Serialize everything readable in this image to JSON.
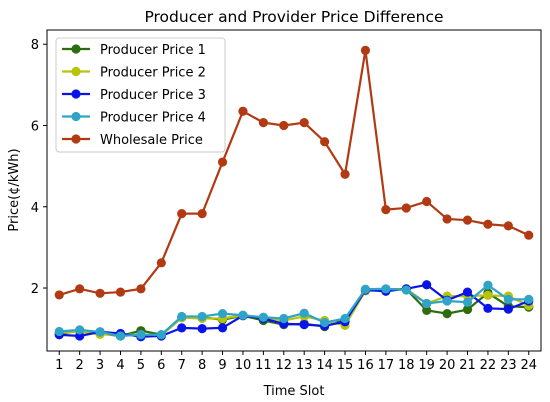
{
  "chart_data": {
    "type": "line",
    "title": "Producer and Provider Price Difference",
    "xlabel": "Time Slot",
    "ylabel": "Price(¢/kWh)",
    "x": [
      1,
      2,
      3,
      4,
      5,
      6,
      7,
      8,
      9,
      10,
      11,
      12,
      13,
      14,
      15,
      16,
      17,
      18,
      19,
      20,
      21,
      22,
      23,
      24
    ],
    "x_ticks": [
      "1",
      "2",
      "3",
      "4",
      "5",
      "6",
      "7",
      "8",
      "9",
      "10",
      "11",
      "12",
      "13",
      "14",
      "15",
      "16",
      "17",
      "18",
      "19",
      "20",
      "21",
      "22",
      "23",
      "24"
    ],
    "y_ticks": [
      "2",
      "4",
      "6",
      "8"
    ],
    "ylim": [
      0.45,
      8.35
    ],
    "xlim": [
      0.4,
      24.6
    ],
    "grid": false,
    "legend_position": "top-left",
    "series": [
      {
        "name": "Producer Price 1",
        "color": "#2e6d0e",
        "values": [
          0.87,
          0.95,
          0.88,
          0.82,
          0.95,
          0.85,
          1.27,
          1.28,
          1.22,
          1.32,
          1.2,
          1.1,
          1.12,
          1.05,
          1.22,
          1.95,
          1.97,
          1.97,
          1.45,
          1.37,
          1.47,
          1.88,
          1.55,
          1.53
        ]
      },
      {
        "name": "Producer Price 2",
        "color": "#b7c40c",
        "values": [
          0.9,
          0.93,
          0.86,
          0.85,
          0.85,
          0.83,
          1.27,
          1.25,
          1.25,
          1.33,
          1.27,
          1.2,
          1.3,
          1.2,
          1.08,
          1.93,
          1.95,
          1.98,
          1.62,
          1.8,
          1.8,
          1.82,
          1.8,
          1.57
        ]
      },
      {
        "name": "Producer Price 3",
        "color": "#0a14e8",
        "values": [
          0.85,
          0.82,
          0.92,
          0.88,
          0.8,
          0.82,
          1.02,
          1.0,
          1.02,
          1.32,
          1.25,
          1.12,
          1.1,
          1.07,
          1.17,
          1.95,
          1.92,
          1.98,
          2.08,
          1.7,
          1.9,
          1.5,
          1.48,
          1.68
        ]
      },
      {
        "name": "Producer Price 4",
        "color": "#30a4c8",
        "values": [
          0.93,
          0.97,
          0.92,
          0.82,
          0.85,
          0.85,
          1.3,
          1.3,
          1.37,
          1.33,
          1.28,
          1.25,
          1.38,
          1.15,
          1.25,
          1.97,
          1.98,
          1.95,
          1.62,
          1.68,
          1.65,
          2.07,
          1.72,
          1.72
        ]
      },
      {
        "name": "Wholesale Price",
        "color": "#b23a12",
        "values": [
          1.83,
          1.98,
          1.87,
          1.9,
          1.98,
          2.62,
          3.83,
          3.83,
          5.1,
          6.35,
          6.07,
          6.0,
          6.07,
          5.6,
          4.8,
          7.85,
          3.93,
          3.97,
          4.13,
          3.7,
          3.67,
          3.57,
          3.53,
          3.3
        ]
      }
    ]
  }
}
